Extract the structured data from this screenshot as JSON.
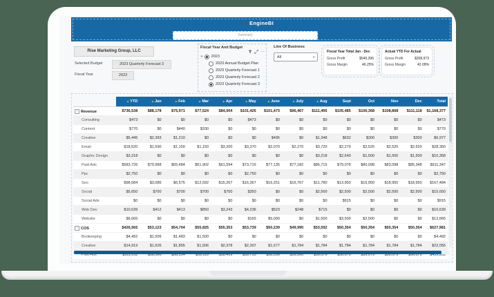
{
  "app": {
    "title": "EngineBI",
    "page_tab": "Summary"
  },
  "colors": {
    "accent_blue": "#1769a6",
    "sort_yellow": "#f2c811",
    "background_green": "#4a6453",
    "scrollbar_blue": "#0d5c95"
  },
  "icons": {
    "filter": "funnel-shape",
    "expand_visual": "diagonal-arrows",
    "ellipsis": "…",
    "chevron_up": "∧",
    "chevron_down": "∨",
    "sort": "▲",
    "expand_row": "+"
  },
  "filters": {
    "company": "Rise Marketing Group, LLC",
    "budget": {
      "label": "Selected Budget",
      "value": "2023 Quarterly Forecast 3"
    },
    "fiscal_year": {
      "label": "Fiscal Year",
      "value": "2023"
    },
    "slicer": {
      "title": "Fiscal Year And Budget",
      "parent": "2023",
      "options": [
        "2023 Annual Budget Plan",
        "2023 Quarterly Forecast 1",
        "2023 Quarterly Forecast 2",
        "2023 Quarterly Forecast 3"
      ],
      "selected_index": 3
    },
    "lob": {
      "label": "Line Of Business",
      "value": "All"
    }
  },
  "cards": [
    {
      "title": "Fiscal Year Total Jan - Dec",
      "rows": [
        {
          "label": "Gross Profit",
          "value": "$540,396"
        },
        {
          "label": "Gross Margin",
          "value": "46.25%"
        }
      ]
    },
    {
      "title": "Actual YTD For Actual",
      "rows": [
        {
          "label": "Gross Profit",
          "value": "$309,973"
        },
        {
          "label": "Gross Margin",
          "value": "42.09%"
        }
      ]
    }
  ],
  "table": {
    "columns": [
      "",
      "YTD",
      "Jan",
      "Feb",
      "Mar",
      "Apr",
      "May",
      "June",
      "July",
      "Aug",
      "Sept",
      "Oct",
      "Nov",
      "Dec",
      "Total"
    ],
    "sorted": [
      "YTD",
      "Jan",
      "Feb",
      "Mar",
      "Apr",
      "May",
      "June",
      "July",
      "Aug"
    ],
    "rows": [
      {
        "label": "Revenue",
        "group": true,
        "values": [
          "$736,538",
          "$88,178",
          "$75,971",
          "$77,524",
          "$84,004",
          "$101,426",
          "$101,473",
          "$96,467",
          "$111,495",
          "$105,485",
          "$106,368",
          "$108,868",
          "$111,118",
          "$1,168,377"
        ]
      },
      {
        "label": "Consulting",
        "group": false,
        "values": [
          "$473",
          "$0",
          "$0",
          "$0",
          "$0",
          "$473",
          "$0",
          "$0",
          "$0",
          "$0",
          "$0",
          "$0",
          "$0",
          "$473"
        ]
      },
      {
        "label": "Content",
        "group": false,
        "values": [
          "$770",
          "$0",
          "$440",
          "$330",
          "$0",
          "$0",
          "$0",
          "$0",
          "$0",
          "$0",
          "$0",
          "$0",
          "$0",
          "$770"
        ]
      },
      {
        "label": "Creative",
        "group": false,
        "values": [
          "$5,445",
          "$2,393",
          "$1,210",
          "$0",
          "$0",
          "$0",
          "$495",
          "$0",
          "$1,348",
          "$632",
          "$300",
          "$300",
          "$300",
          "$6,977"
        ]
      },
      {
        "label": "Email",
        "group": false,
        "values": [
          "$18,520",
          "$1,590",
          "$1,150",
          "$1,150",
          "$3,200",
          "$3,370",
          "$2,070",
          "$2,270",
          "$3,720",
          "$2,270",
          "$2,520",
          "$2,520",
          "$2,520",
          "$28,350"
        ]
      },
      {
        "label": "Graphic Design",
        "group": false,
        "values": [
          "$3,218",
          "$0",
          "$0",
          "$0",
          "$0",
          "$0",
          "$0",
          "$0",
          "$3,218",
          "$2,640",
          "$1,500",
          "$1,500",
          "$1,500",
          "$10,358"
        ]
      },
      {
        "label": "Paid Ads",
        "group": false,
        "values": [
          "$583,726",
          "$79,998",
          "$65,484",
          "$61,902",
          "$61,594",
          "$73,716",
          "$77,135",
          "$77,182",
          "$86,715",
          "$79,078",
          "$80,098",
          "$83,098",
          "$85,348",
          "$911,347"
        ]
      },
      {
        "label": "Ppc",
        "group": false,
        "values": [
          "$2,750",
          "$0",
          "$0",
          "$0",
          "$0",
          "$2,750",
          "$0",
          "$0",
          "$0",
          "$0",
          "$0",
          "$0",
          "$0",
          "$2,750"
        ]
      },
      {
        "label": "Seo",
        "group": false,
        "values": [
          "$98,684",
          "$3,085",
          "$6,575",
          "$12,592",
          "$15,267",
          "$16,367",
          "$16,251",
          "$16,767",
          "$11,780",
          "$13,950",
          "$16,950",
          "$18,950",
          "$18,950",
          "$167,484"
        ]
      },
      {
        "label": "Social",
        "group": false,
        "values": [
          "$5,650",
          "$700",
          "$700",
          "$700",
          "$700",
          "$350",
          "$0",
          "$0",
          "$2,500",
          "$2,500",
          "$2,500",
          "$2,500",
          "$2,500",
          "$15,650"
        ]
      },
      {
        "label": "Social Ads",
        "group": false,
        "values": [
          "$0",
          "$0",
          "$0",
          "$0",
          "$0",
          "$0",
          "$0",
          "$0",
          "$0",
          "$915",
          "$0",
          "$0",
          "$0",
          "$915"
        ]
      },
      {
        "label": "Web Dev",
        "group": false,
        "values": [
          "$10,639",
          "$412",
          "$413",
          "$850",
          "$3,243",
          "$4,236",
          "$523",
          "$248",
          "$715",
          "$0",
          "$0",
          "$0",
          "$0",
          "$10,639"
        ]
      },
      {
        "label": "Website",
        "group": false,
        "values": [
          "$6,665",
          "$0",
          "$0",
          "$0",
          "$0",
          "$165",
          "$5,000",
          "$0",
          "$1,500",
          "$3,500",
          "$2,500",
          "$0",
          "$0",
          "$12,665"
        ]
      },
      {
        "label": "COS",
        "group": true,
        "values": [
          "$426,565",
          "$53,123",
          "$54,704",
          "$55,825",
          "$55,353",
          "$53,739",
          "$50,239",
          "$49,990",
          "$53,592",
          "$50,354",
          "$50,354",
          "$50,354",
          "$50,354",
          "$627,981"
        ]
      },
      {
        "label": "Bookeeping",
        "group": false,
        "values": [
          "$4,492",
          "$1,509",
          "$1,483",
          "$1,500",
          "$0",
          "$0",
          "$0",
          "$0",
          "$0",
          "$0",
          "$0",
          "$0",
          "$0",
          "$4,492"
        ]
      },
      {
        "label": "Creative",
        "group": false,
        "values": [
          "$14,919",
          "$1,626",
          "$1,855",
          "$1,506",
          "$2,378",
          "$2,307",
          "$1,677",
          "$1,784",
          "$1,784",
          "$1,784",
          "$1,784",
          "$1,784",
          "$1,784",
          "$22,055"
        ]
      },
      {
        "label": "Paid Ads",
        "group": false,
        "values": [
          "$311,611",
          "$38,566",
          "$38,314",
          "$39,119",
          "$38,419",
          "$39,755",
          "$38,356",
          "$39,500",
          "$39,579",
          "$36,079",
          "$36,079",
          "$36,079",
          "$36,079",
          "$455,928"
        ]
      }
    ]
  }
}
